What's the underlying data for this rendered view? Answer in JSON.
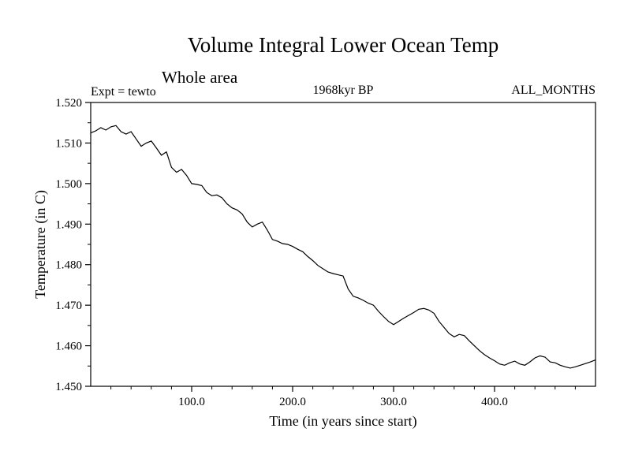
{
  "header": {
    "title": "Volume Integral Lower Ocean Temp",
    "subtitle": "Whole area",
    "experiment": "Expt = tewto",
    "time_stamp": "1968kyr BP",
    "months": "ALL_MONTHS"
  },
  "colors": {
    "line": "#000000",
    "axis": "#000000",
    "background": "#ffffff"
  },
  "chart_data": {
    "type": "line",
    "title": "Volume Integral Lower Ocean Temp",
    "subtitle": "Whole area",
    "annotations": [
      "Expt = tewto",
      "1968kyr BP",
      "ALL_MONTHS"
    ],
    "xlabel": "Time (in years since start)",
    "ylabel": "Temperature (in C)",
    "xlim": [
      0,
      500
    ],
    "ylim": [
      1.45,
      1.52
    ],
    "grid": false,
    "legend": "none",
    "x_ticks": [
      100,
      200,
      300,
      400
    ],
    "x_tick_labels": [
      "100.0",
      "200.0",
      "300.0",
      "400.0"
    ],
    "x_minor_step": 20,
    "y_ticks": [
      1.45,
      1.46,
      1.47,
      1.48,
      1.49,
      1.5,
      1.51,
      1.52
    ],
    "y_tick_labels": [
      "1.450",
      "1.460",
      "1.470",
      "1.480",
      "1.490",
      "1.500",
      "1.510",
      "1.520"
    ],
    "y_minor_step": 0.005,
    "x": [
      0,
      5,
      10,
      15,
      20,
      25,
      30,
      35,
      40,
      45,
      50,
      55,
      60,
      65,
      70,
      75,
      80,
      85,
      90,
      95,
      100,
      105,
      110,
      115,
      120,
      125,
      130,
      135,
      140,
      145,
      150,
      155,
      160,
      165,
      170,
      175,
      180,
      185,
      190,
      195,
      200,
      205,
      210,
      215,
      220,
      225,
      230,
      235,
      240,
      245,
      250,
      255,
      260,
      265,
      270,
      275,
      280,
      285,
      290,
      295,
      300,
      305,
      310,
      315,
      320,
      325,
      330,
      335,
      340,
      345,
      350,
      355,
      360,
      365,
      370,
      375,
      380,
      385,
      390,
      395,
      400,
      405,
      410,
      415,
      420,
      425,
      430,
      435,
      440,
      445,
      450,
      455,
      460,
      465,
      470,
      475,
      480,
      485,
      490,
      495,
      500
    ],
    "series": [
      {
        "name": "lower_ocean_temperature",
        "values": [
          1.5125,
          1.513,
          1.5138,
          1.5132,
          1.514,
          1.5143,
          1.5128,
          1.5122,
          1.5128,
          1.511,
          1.5092,
          1.51,
          1.5105,
          1.5088,
          1.507,
          1.5078,
          1.504,
          1.5028,
          1.5035,
          1.502,
          1.5,
          1.4998,
          1.4995,
          1.4978,
          1.497,
          1.4972,
          1.4965,
          1.495,
          1.494,
          1.4935,
          1.4925,
          1.4905,
          1.4893,
          1.49,
          1.4905,
          1.4885,
          1.4862,
          1.4858,
          1.4852,
          1.485,
          1.4845,
          1.4838,
          1.4832,
          1.482,
          1.481,
          1.4798,
          1.479,
          1.4782,
          1.4778,
          1.4775,
          1.4772,
          1.474,
          1.4722,
          1.4718,
          1.4712,
          1.4705,
          1.47,
          1.4685,
          1.4672,
          1.466,
          1.4652,
          1.466,
          1.4668,
          1.4675,
          1.4682,
          1.469,
          1.4692,
          1.4688,
          1.468,
          1.466,
          1.4645,
          1.463,
          1.4622,
          1.4628,
          1.4625,
          1.4612,
          1.46,
          1.4588,
          1.4578,
          1.457,
          1.4563,
          1.4555,
          1.4552,
          1.4558,
          1.4562,
          1.4555,
          1.4552,
          1.456,
          1.457,
          1.4575,
          1.4572,
          1.456,
          1.4558,
          1.4552,
          1.4548,
          1.4545,
          1.4548,
          1.4552,
          1.4556,
          1.456,
          1.4565
        ]
      }
    ]
  }
}
